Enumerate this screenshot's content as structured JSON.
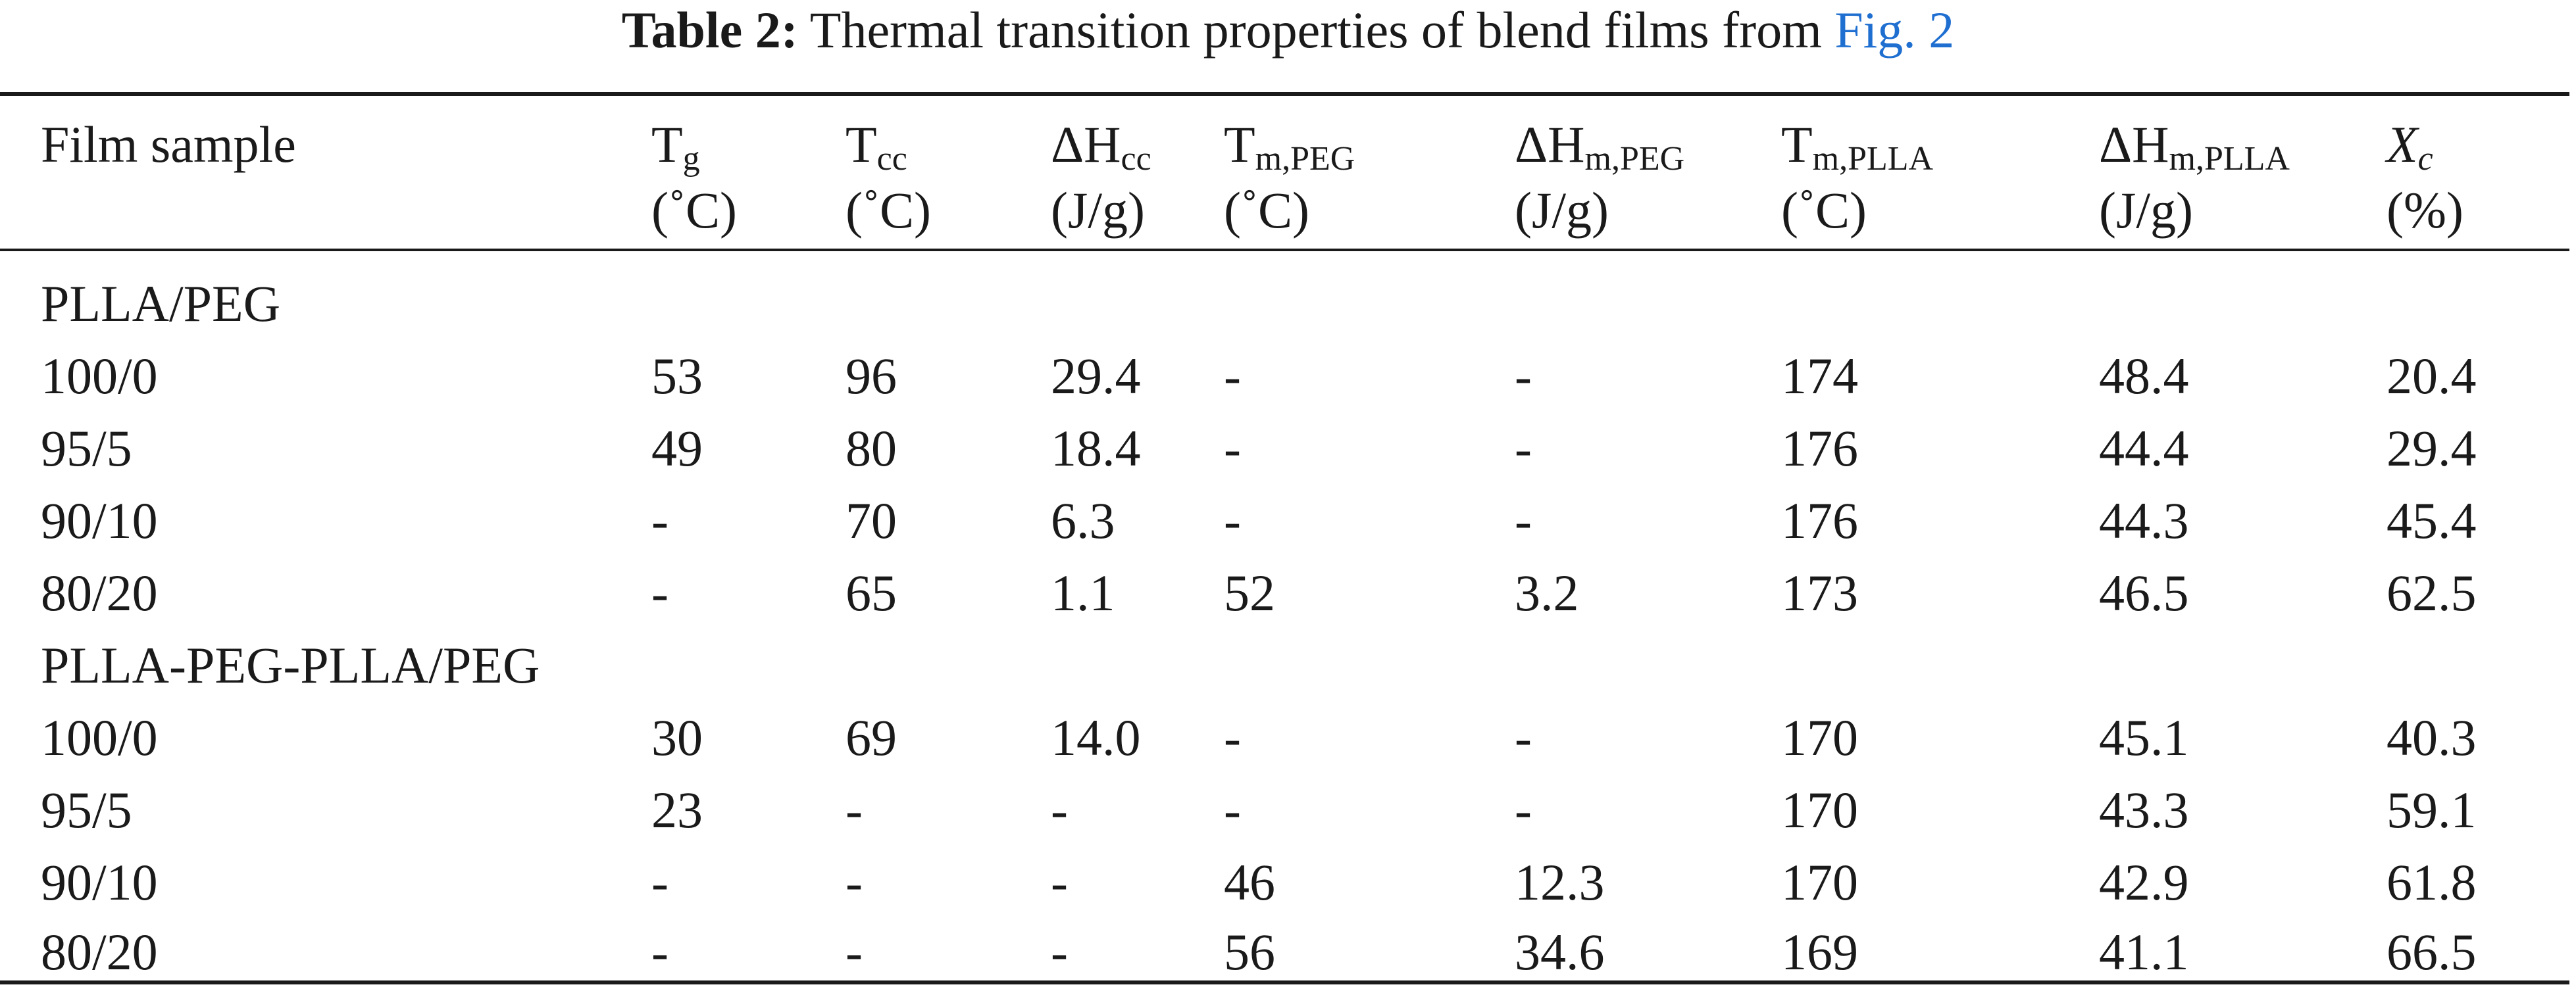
{
  "caption": {
    "label": "Table 2:",
    "text": " Thermal transition properties of blend films from ",
    "link": "Fig. 2"
  },
  "header": {
    "film_sample": "Film sample",
    "tg": {
      "main": "T",
      "sub": "g",
      "unit": "(˚C)"
    },
    "tcc": {
      "main": "T",
      "sub": "cc",
      "unit": "(˚C)"
    },
    "dhcc": {
      "main": "ΔH",
      "sub": "cc",
      "unit": "(J/g)"
    },
    "tm_peg": {
      "main": "T",
      "sub": "m,PEG",
      "unit": "(˚C)"
    },
    "dhm_peg": {
      "main": "ΔH",
      "sub": "m,PEG",
      "unit": "(J/g)"
    },
    "tm_plla": {
      "main": "T",
      "sub": "m,PLLA",
      "unit": "(˚C)"
    },
    "dhm_plla": {
      "main": "ΔH",
      "sub": "m,PLLA",
      "unit": "(J/g)"
    },
    "xc": {
      "main": "X",
      "sub": "c",
      "unit": "(%)"
    }
  },
  "groups": [
    {
      "name": "PLLA/PEG",
      "rows": [
        [
          "100/0",
          "53",
          "96",
          "29.4",
          "-",
          "-",
          "174",
          "48.4",
          "20.4"
        ],
        [
          "95/5",
          "49",
          "80",
          "18.4",
          "-",
          "-",
          "176",
          "44.4",
          "29.4"
        ],
        [
          "90/10",
          "-",
          "70",
          "6.3",
          "-",
          "-",
          "176",
          "44.3",
          "45.4"
        ],
        [
          "80/20",
          "-",
          "65",
          "1.1",
          "52",
          "3.2",
          "173",
          "46.5",
          "62.5"
        ]
      ]
    },
    {
      "name": "PLLA-PEG-PLLA/PEG",
      "rows": [
        [
          "100/0",
          "30",
          "69",
          "14.0",
          "-",
          "-",
          "170",
          "45.1",
          "40.3"
        ],
        [
          "95/5",
          "23",
          "-",
          "-",
          "-",
          "-",
          "170",
          "43.3",
          "59.1"
        ],
        [
          "90/10",
          "-",
          "-",
          "-",
          "46",
          "12.3",
          "170",
          "42.9",
          "61.8"
        ],
        [
          "80/20",
          "-",
          "-",
          "-",
          "56",
          "34.6",
          "169",
          "41.1",
          "66.5"
        ]
      ]
    }
  ]
}
